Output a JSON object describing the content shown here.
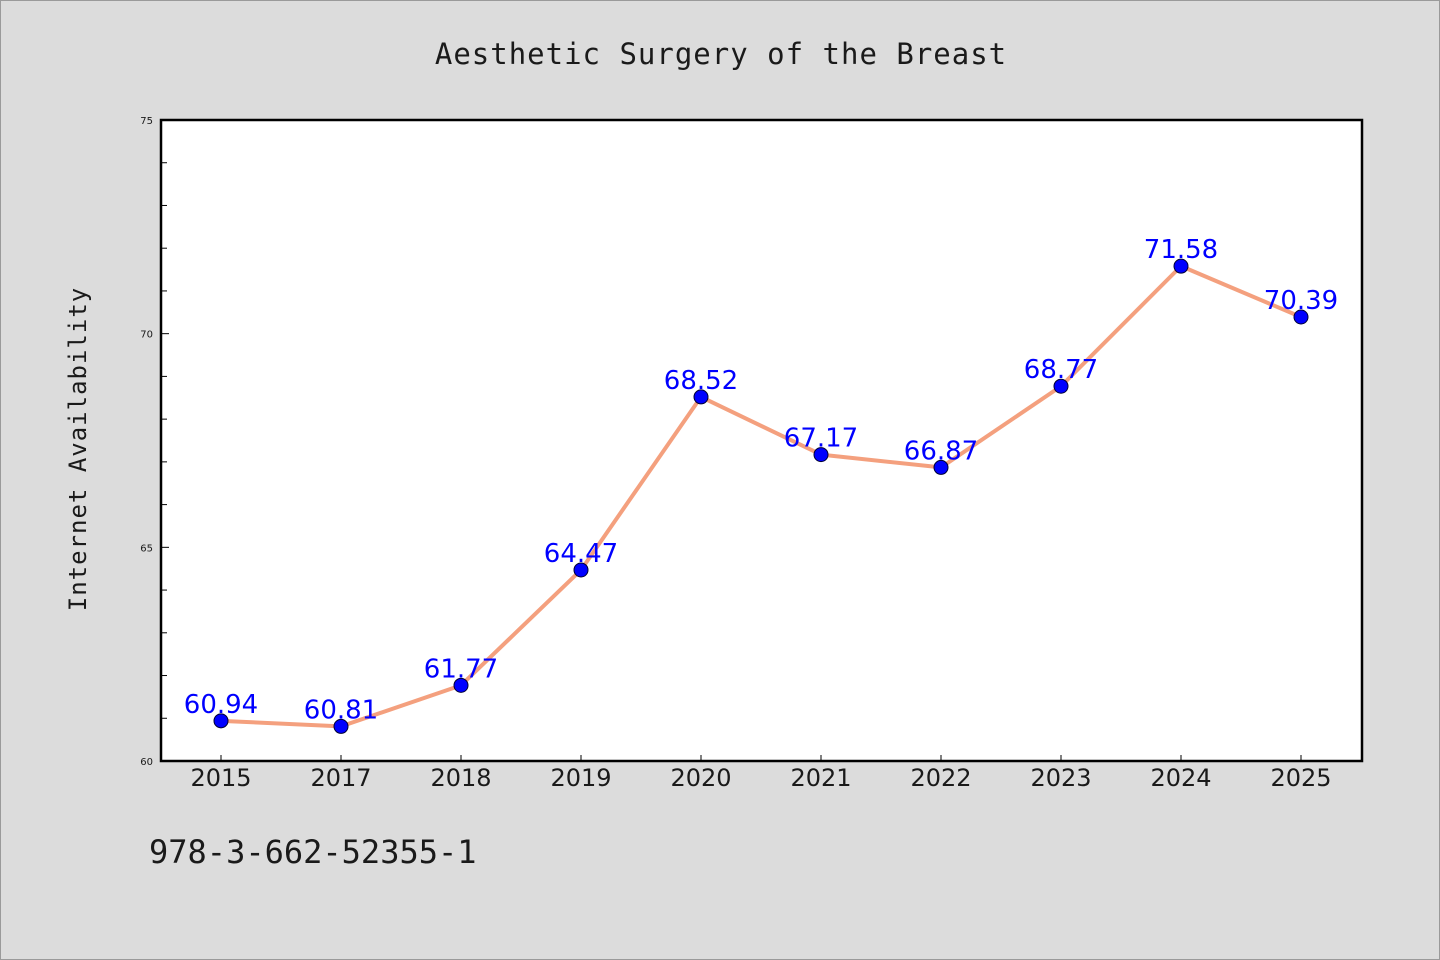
{
  "chart_data": {
    "type": "line",
    "title": "Aesthetic Surgery of the Breast",
    "xlabel": "",
    "ylabel": "Internet Availability",
    "categories": [
      "2015",
      "2017",
      "2018",
      "2019",
      "2020",
      "2021",
      "2022",
      "2023",
      "2024",
      "2025"
    ],
    "series": [
      {
        "values": [
          60.94,
          60.81,
          61.77,
          64.47,
          68.52,
          67.17,
          66.87,
          68.77,
          71.58,
          70.39
        ],
        "labels": [
          "60.94",
          "60.81",
          "61.77",
          "64.47",
          "68.52",
          "67.17",
          "66.87",
          "68.77",
          "71.58",
          "70.39"
        ],
        "line_color": "#f4a07e",
        "marker_color": "#0000ff"
      }
    ],
    "ylim": [
      60,
      75
    ],
    "yticks": [
      60,
      65,
      70,
      75
    ],
    "ytick_labels": [
      "60",
      "65",
      "70",
      "75"
    ],
    "grid": false,
    "legend": "none"
  },
  "footer": {
    "isbn": "978-3-662-52355-1"
  },
  "colors": {
    "background": "#dcdcdc",
    "plot_background": "#ffffff",
    "line": "#f4a07e",
    "marker": "#0000ff",
    "data_label": "#0000ff"
  }
}
